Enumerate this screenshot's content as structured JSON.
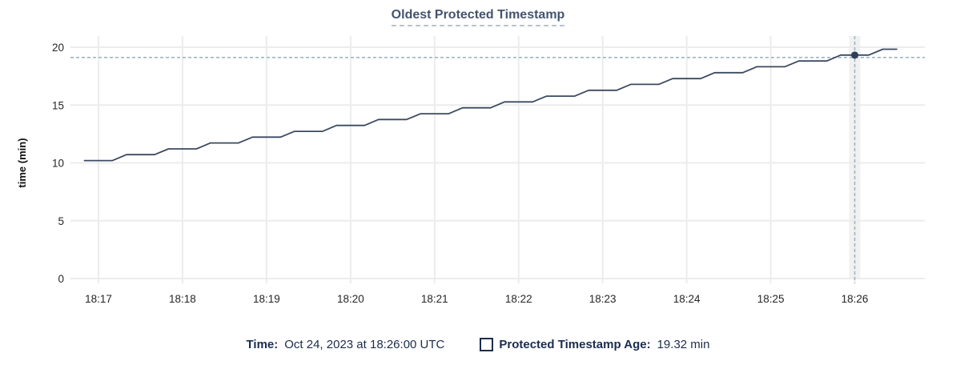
{
  "title": "Oldest Protected Timestamp",
  "legend": {
    "time_label": "Time:",
    "time_value": "Oct 24, 2023 at 18:26:00 UTC",
    "series_label": "Protected Timestamp Age:",
    "series_value": "19.32 min",
    "series_swatch": "square-outline-icon"
  },
  "colors": {
    "line": "#3b4a61",
    "dot": "#2e3e58",
    "crosshair": "#9fb5c1",
    "grid": "#ececec",
    "hover_band": "#ececec",
    "title": "#44546e",
    "title_underline": "#b9c3cc",
    "legend_text": "#1b2c4f",
    "tick_text": "#262626"
  },
  "chart_data": {
    "type": "line",
    "title": "Oldest Protected Timestamp",
    "xlabel": "",
    "ylabel": "time (min)",
    "ylim": [
      0,
      20
    ],
    "y_ticks": [
      0,
      5,
      10,
      15,
      20
    ],
    "x_ticks": [
      "18:17",
      "18:18",
      "18:19",
      "18:20",
      "18:21",
      "18:22",
      "18:23",
      "18:24",
      "18:25",
      "18:26"
    ],
    "x_domain": [
      "18:16:40",
      "18:26:50"
    ],
    "grid": true,
    "legend_position": "bottom",
    "series": [
      {
        "name": "Protected Timestamp Age",
        "unit": "min",
        "x": [
          "18:16:50",
          "18:17:00",
          "18:17:10",
          "18:17:20",
          "18:17:30",
          "18:17:40",
          "18:17:50",
          "18:18:00",
          "18:18:10",
          "18:18:20",
          "18:18:30",
          "18:18:40",
          "18:18:50",
          "18:19:00",
          "18:19:10",
          "18:19:20",
          "18:19:30",
          "18:19:40",
          "18:19:50",
          "18:20:00",
          "18:20:10",
          "18:20:20",
          "18:20:30",
          "18:20:40",
          "18:20:50",
          "18:21:00",
          "18:21:10",
          "18:21:20",
          "18:21:30",
          "18:21:40",
          "18:21:50",
          "18:22:00",
          "18:22:10",
          "18:22:20",
          "18:22:30",
          "18:22:40",
          "18:22:50",
          "18:23:00",
          "18:23:10",
          "18:23:20",
          "18:23:30",
          "18:23:40",
          "18:23:50",
          "18:24:00",
          "18:24:10",
          "18:24:20",
          "18:24:30",
          "18:24:40",
          "18:24:50",
          "18:25:00",
          "18:25:10",
          "18:25:20",
          "18:25:30",
          "18:25:40",
          "18:25:50",
          "18:26:00",
          "18:26:10",
          "18:26:20",
          "18:26:30"
        ],
        "y": [
          10.2,
          10.2,
          10.2,
          10.71,
          10.71,
          10.71,
          11.21,
          11.21,
          11.21,
          11.72,
          11.72,
          11.72,
          12.23,
          12.23,
          12.23,
          12.73,
          12.73,
          12.73,
          13.24,
          13.24,
          13.24,
          13.75,
          13.75,
          13.75,
          14.25,
          14.25,
          14.25,
          14.76,
          14.76,
          14.76,
          15.27,
          15.27,
          15.27,
          15.77,
          15.77,
          15.77,
          16.28,
          16.28,
          16.28,
          16.79,
          16.79,
          16.79,
          17.29,
          17.29,
          17.29,
          17.8,
          17.8,
          17.8,
          18.31,
          18.31,
          18.31,
          18.81,
          18.81,
          18.81,
          19.32,
          19.32,
          19.32,
          19.83,
          19.83
        ]
      }
    ],
    "hover_point": {
      "x": "18:26:00",
      "y": 19.32
    }
  }
}
